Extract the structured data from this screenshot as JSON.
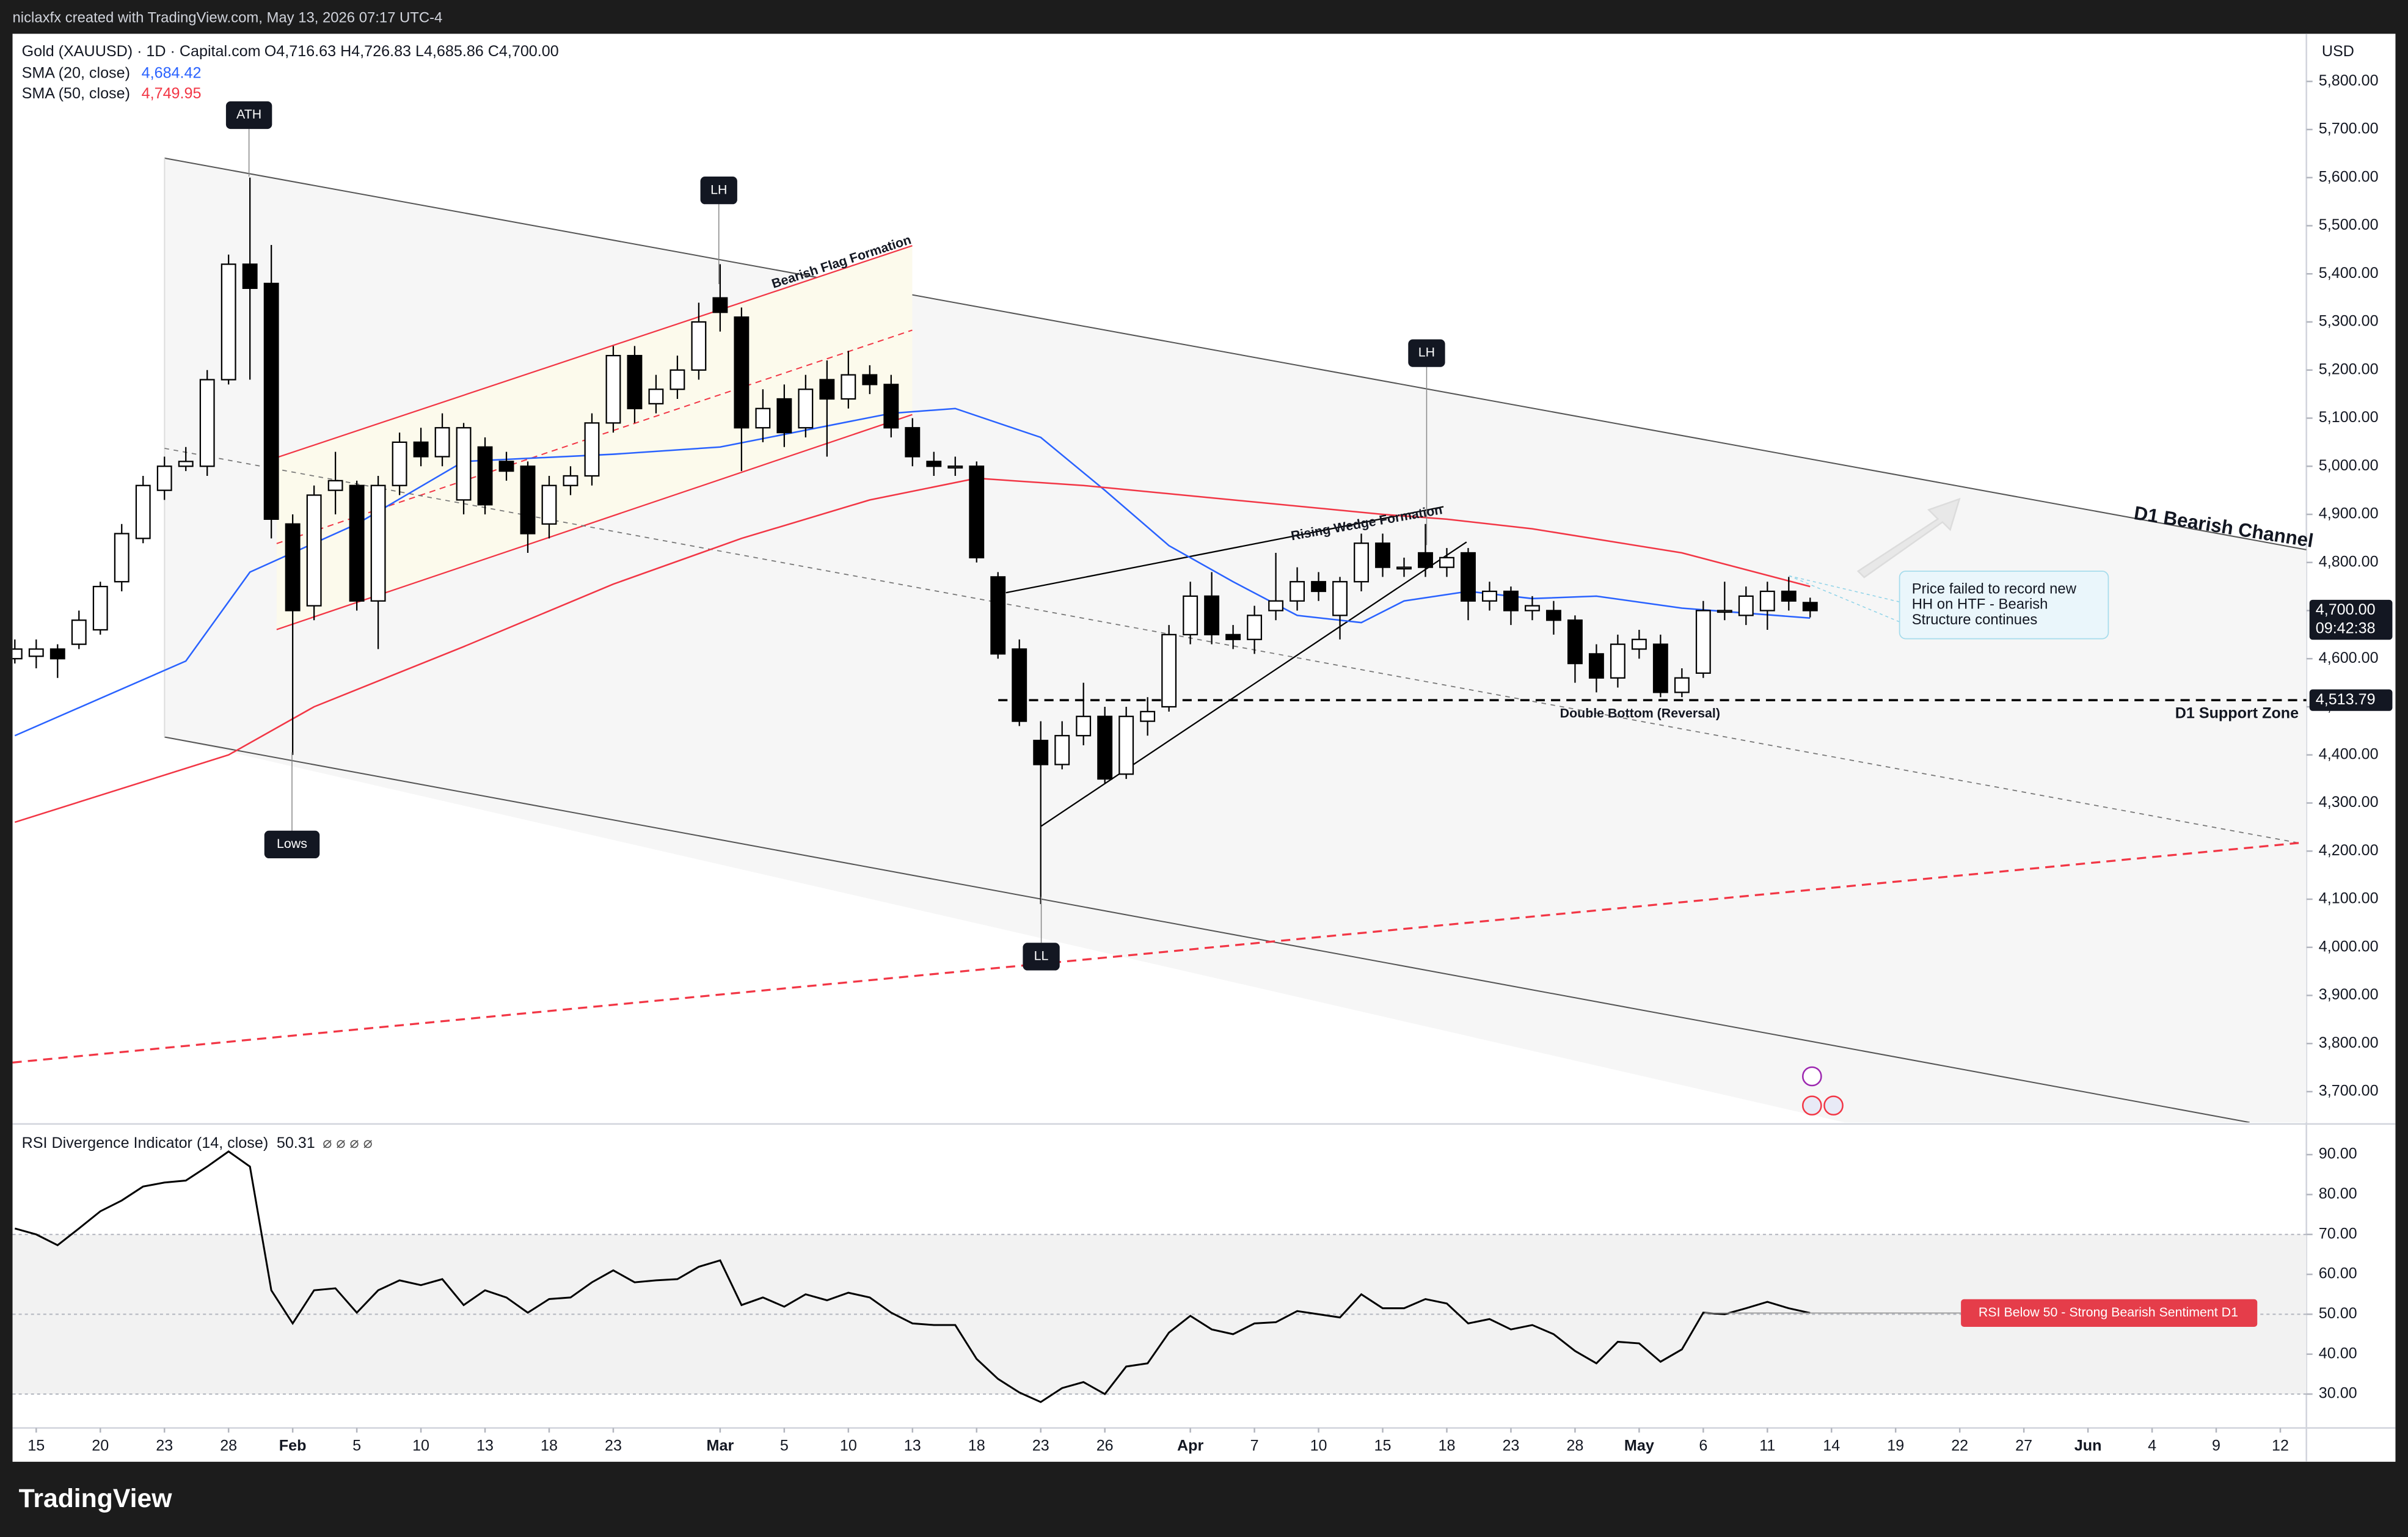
{
  "header": "niclaxfx created with TradingView.com, May 13, 2026 07:17 UTC-4",
  "brand": "TradingView",
  "chart_data": [
    {
      "type": "candlestick",
      "title": "Gold (XAUUSD) · 1D · Capital.com",
      "ohlc_label": "O4,716.63 H4,726.83 L4,685.86 C4,700.00",
      "axis_label": "USD",
      "up_color": "#ffffff",
      "down_color": "#000000",
      "open": [
        4600,
        4605,
        4620,
        4630,
        4660,
        4760,
        4850,
        4950,
        5000,
        5000,
        5180,
        5420,
        5380,
        4880,
        4710,
        4950,
        4960,
        4720,
        4960,
        5050,
        5020,
        4930,
        5040,
        5010,
        5000,
        4880,
        4960,
        4980,
        5090,
        5230,
        5130,
        5160,
        5200,
        5350,
        5310,
        5080,
        5140,
        5080,
        5180,
        5140,
        5190,
        5170,
        5080,
        5010,
        5000,
        5000,
        4770,
        4620,
        4430,
        4380,
        4440,
        4480,
        4360,
        4470,
        4500,
        4650,
        4730,
        4650,
        4640,
        4700,
        4720,
        4760,
        4690,
        4760,
        4840,
        4790,
        4820,
        4790,
        4820,
        4720,
        4740,
        4700,
        4700,
        4680,
        4610,
        4560,
        4620,
        4630,
        4530,
        4570,
        4700,
        4690,
        4700,
        4740,
        4716.63
      ],
      "high": [
        4640,
        4640,
        4630,
        4700,
        4760,
        4880,
        4980,
        5020,
        5040,
        5200,
        5440,
        5600,
        5460,
        4900,
        4960,
        5030,
        4970,
        4980,
        5070,
        5080,
        5110,
        5090,
        5060,
        5030,
        5010,
        4980,
        5000,
        5110,
        5250,
        5250,
        5190,
        5230,
        5340,
        5420,
        5330,
        5160,
        5170,
        5190,
        5220,
        5240,
        5210,
        5190,
        5100,
        5030,
        5020,
        5010,
        4780,
        4640,
        4470,
        4470,
        4550,
        4500,
        4500,
        4520,
        4670,
        4760,
        4780,
        4670,
        4710,
        4820,
        4790,
        4780,
        4770,
        4860,
        4860,
        4810,
        4880,
        4830,
        4830,
        4760,
        4750,
        4730,
        4720,
        4690,
        4630,
        4650,
        4660,
        4650,
        4580,
        4720,
        4760,
        4750,
        4760,
        4770,
        4726.83
      ],
      "low": [
        4590,
        4580,
        4560,
        4620,
        4650,
        4740,
        4840,
        4930,
        4990,
        4980,
        5170,
        5180,
        4850,
        4400,
        4680,
        4900,
        4700,
        4620,
        4940,
        5000,
        5000,
        4900,
        4900,
        4970,
        4820,
        4850,
        4940,
        4960,
        5070,
        5090,
        5110,
        5140,
        5180,
        5280,
        4990,
        5050,
        5040,
        5060,
        5020,
        5120,
        5150,
        5060,
        5000,
        4980,
        4980,
        4800,
        4600,
        4460,
        4090,
        4370,
        4420,
        4340,
        4350,
        4440,
        4490,
        4630,
        4630,
        4620,
        4610,
        4680,
        4700,
        4720,
        4640,
        4740,
        4770,
        4770,
        4770,
        4770,
        4680,
        4700,
        4670,
        4680,
        4650,
        4550,
        4530,
        4540,
        4600,
        4520,
        4520,
        4560,
        4680,
        4670,
        4660,
        4700,
        4685.86
      ],
      "close": [
        4620,
        4620,
        4600,
        4680,
        4750,
        4860,
        4960,
        5000,
        5010,
        5180,
        5420,
        5370,
        4890,
        4700,
        4940,
        4970,
        4720,
        4960,
        5050,
        5020,
        5080,
        5080,
        4920,
        4990,
        4860,
        4960,
        4980,
        5090,
        5230,
        5120,
        5160,
        5200,
        5300,
        5320,
        5080,
        5120,
        5070,
        5160,
        5140,
        5190,
        5170,
        5080,
        5020,
        5000,
        5000,
        4810,
        4610,
        4470,
        4380,
        4440,
        4480,
        4350,
        4480,
        4490,
        4650,
        4730,
        4650,
        4640,
        4690,
        4720,
        4760,
        4740,
        4760,
        4840,
        4790,
        4790,
        4790,
        4810,
        4720,
        4740,
        4700,
        4710,
        4680,
        4590,
        4560,
        4630,
        4640,
        4530,
        4560,
        4700,
        4700,
        4730,
        4740,
        4720,
        4700
      ],
      "overlays": [
        {
          "name": "SMA (20, close)",
          "value_label": "4,684.42",
          "color": "#2962ff",
          "x": [
            0,
            8,
            11,
            16,
            21,
            28,
            33,
            41,
            44,
            48,
            51,
            54,
            57,
            60,
            63,
            65,
            68,
            71,
            74,
            78,
            84
          ],
          "values": [
            4440,
            4595,
            4780,
            4880,
            5010,
            5025,
            5040,
            5110,
            5120,
            5060,
            4950,
            4835,
            4760,
            4690,
            4675,
            4720,
            4740,
            4725,
            4730,
            4705,
            4684.42
          ]
        },
        {
          "name": "SMA (50, close)",
          "value_label": "4,749.95",
          "color": "#f23645",
          "x": [
            0,
            10,
            14,
            21,
            28,
            34,
            40,
            45,
            50,
            57,
            64,
            67,
            71,
            78,
            84
          ],
          "values": [
            4260,
            4400,
            4500,
            4625,
            4755,
            4850,
            4930,
            4975,
            4960,
            4930,
            4900,
            4890,
            4870,
            4820,
            4749.95
          ]
        }
      ],
      "last_price": {
        "value": 4700,
        "label": "4,700.00"
      },
      "countdown": "09:42:38",
      "level": {
        "name": "D1 Support Zone",
        "value": 4513.79,
        "label": "4,513.79"
      },
      "annotations": [
        "ATH",
        "LH",
        "LH",
        "Lows",
        "LL",
        "Bearish Flag Formation",
        "Rising Wedge Formation",
        "D1 Bearish Channel",
        "Double Bottom (Reversal)"
      ],
      "callout": [
        "Price failed to record new",
        "HH on HTF - Bearish",
        "Structure continues"
      ],
      "ylim": [
        3636,
        5899
      ],
      "yticks": [
        {
          "value": 3700,
          "label": "3,700.00"
        },
        {
          "value": 3800,
          "label": "3,800.00"
        },
        {
          "value": 3900,
          "label": "3,900.00"
        },
        {
          "value": 4000,
          "label": "4,000.00"
        },
        {
          "value": 4100,
          "label": "4,100.00"
        },
        {
          "value": 4200,
          "label": "4,200.00"
        },
        {
          "value": 4300,
          "label": "4,300.00"
        },
        {
          "value": 4400,
          "label": "4,400.00"
        },
        {
          "value": 4500,
          "label": "4,500.00"
        },
        {
          "value": 4600,
          "label": "4,600.00"
        },
        {
          "value": 4700,
          "label": "4,700.00"
        },
        {
          "value": 4800,
          "label": "4,800.00"
        },
        {
          "value": 4900,
          "label": "4,900.00"
        },
        {
          "value": 5000,
          "label": "5,000.00"
        },
        {
          "value": 5100,
          "label": "5,100.00"
        },
        {
          "value": 5200,
          "label": "5,200.00"
        },
        {
          "value": 5300,
          "label": "5,300.00"
        },
        {
          "value": 5400,
          "label": "5,400.00"
        },
        {
          "value": 5500,
          "label": "5,500.00"
        },
        {
          "value": 5600,
          "label": "5,600.00"
        },
        {
          "value": 5700,
          "label": "5,700.00"
        },
        {
          "value": 5800,
          "label": "5,800.00"
        }
      ],
      "xticks": [
        {
          "value": 1,
          "label": "15"
        },
        {
          "value": 4,
          "label": "20"
        },
        {
          "value": 7,
          "label": "23"
        },
        {
          "value": 10,
          "label": "28"
        },
        {
          "value": 13,
          "label": "Feb"
        },
        {
          "value": 16,
          "label": "5"
        },
        {
          "value": 19,
          "label": "10"
        },
        {
          "value": 22,
          "label": "13"
        },
        {
          "value": 25,
          "label": "18"
        },
        {
          "value": 28,
          "label": "23"
        },
        {
          "value": 33,
          "label": "Mar"
        },
        {
          "value": 36,
          "label": "5"
        },
        {
          "value": 39,
          "label": "10"
        },
        {
          "value": 42,
          "label": "13"
        },
        {
          "value": 45,
          "label": "18"
        },
        {
          "value": 48,
          "label": "23"
        },
        {
          "value": 51,
          "label": "26"
        },
        {
          "value": 55,
          "label": "Apr"
        },
        {
          "value": 58,
          "label": "7"
        },
        {
          "value": 61,
          "label": "10"
        },
        {
          "value": 64,
          "label": "15"
        },
        {
          "value": 67,
          "label": "18"
        },
        {
          "value": 70,
          "label": "23"
        },
        {
          "value": 73,
          "label": "28"
        },
        {
          "value": 76,
          "label": "May"
        },
        {
          "value": 79,
          "label": "6"
        },
        {
          "value": 82,
          "label": "11"
        },
        {
          "value": 85,
          "label": "14"
        },
        {
          "value": 88,
          "label": "19"
        },
        {
          "value": 91,
          "label": "22"
        },
        {
          "value": 94,
          "label": "27"
        },
        {
          "value": 97,
          "label": "Jun"
        },
        {
          "value": 100,
          "label": "4"
        },
        {
          "value": 103,
          "label": "9"
        },
        {
          "value": 106,
          "label": "12"
        }
      ],
      "grid": false
    },
    {
      "type": "line",
      "title": "RSI Divergence Indicator (14, close)",
      "value_label": "50.31",
      "status_icons": "⌀ ⌀ ⌀ ⌀",
      "color": "#000000",
      "values": [
        71.5,
        70,
        67.3,
        71.5,
        75.8,
        78.5,
        82,
        83,
        83.5,
        87,
        90.8,
        87,
        56,
        47.7,
        56,
        56.5,
        50.4,
        56,
        58.5,
        57.3,
        58.8,
        52.3,
        56,
        54.2,
        50.4,
        53.8,
        54.2,
        58,
        61,
        58,
        58.5,
        58.8,
        61.9,
        63.5,
        52.3,
        54.2,
        51.9,
        55,
        53.5,
        55.4,
        54.2,
        50.4,
        47.7,
        47.3,
        47.3,
        38.8,
        33.8,
        30.4,
        28,
        31.5,
        33,
        30,
        36.9,
        37.7,
        45.4,
        49.6,
        46.2,
        45,
        47.7,
        48,
        50.8,
        50,
        49.2,
        55,
        51.5,
        51.5,
        53.8,
        52.7,
        47.7,
        48.8,
        46.2,
        47.3,
        45,
        40.8,
        37.7,
        43.1,
        42.7,
        38.1,
        41.2,
        50.4,
        50,
        51.5,
        53.1,
        51.5,
        50.31
      ],
      "band": [
        30,
        70
      ],
      "midline": 50,
      "annotation": "RSI Below 50 - Strong Bearish Sentiment D1",
      "ylim": [
        21.5,
        97.3
      ],
      "yticks": [
        {
          "value": 30,
          "label": "30.00"
        },
        {
          "value": 40,
          "label": "40.00"
        },
        {
          "value": 50,
          "label": "50.00"
        },
        {
          "value": 60,
          "label": "60.00"
        },
        {
          "value": 70,
          "label": "70.00"
        },
        {
          "value": 80,
          "label": "80.00"
        },
        {
          "value": 90,
          "label": "90.00"
        }
      ],
      "grid": false
    }
  ]
}
